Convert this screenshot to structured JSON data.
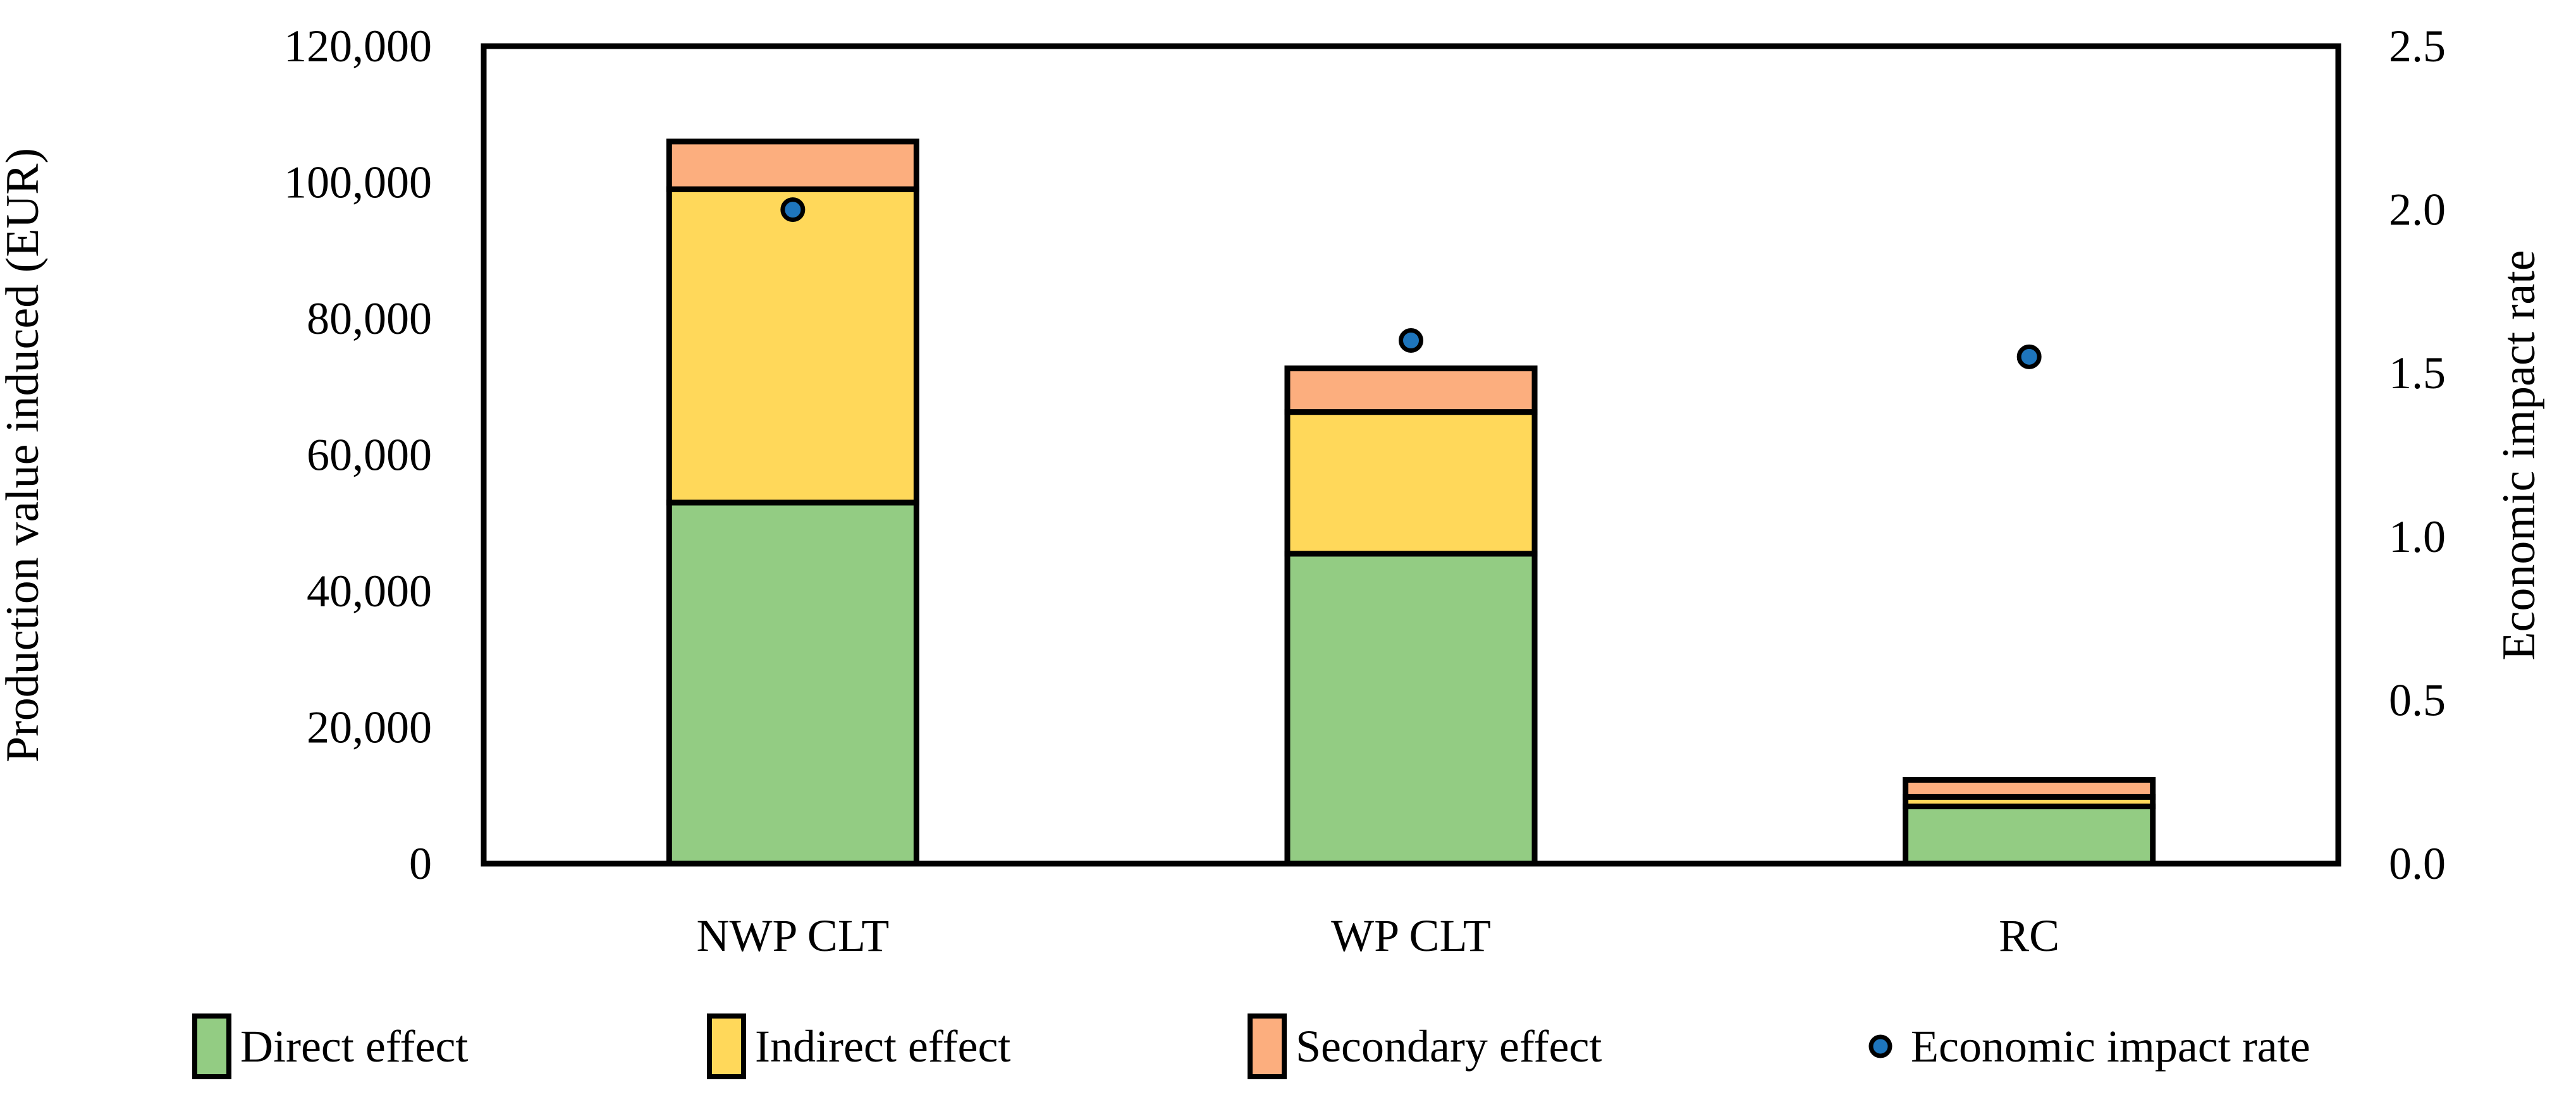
{
  "chart_data": {
    "type": "bar",
    "variant": "stacked-column-with-secondary-axis-scatter",
    "title": "",
    "categories": [
      "NWP CLT",
      "WP CLT",
      "RC"
    ],
    "series": [
      {
        "name": "Direct effect",
        "role": "stack",
        "color": "#93cc83",
        "values": [
          53000,
          45500,
          8400
        ]
      },
      {
        "name": "Indirect effect",
        "role": "stack",
        "color": "#ffd85a",
        "values": [
          46000,
          20800,
          1400
        ]
      },
      {
        "name": "Secondary effect",
        "role": "stack",
        "color": "#fcae7e",
        "values": [
          7000,
          6400,
          2500
        ]
      },
      {
        "name": "Economic impact rate",
        "role": "scatter",
        "color": "#1e75bc",
        "marker_outline": "#000000",
        "values": [
          2.0,
          1.6,
          1.55
        ]
      }
    ],
    "stack_totals": [
      106000,
      72700,
      12300
    ],
    "left_axis": {
      "label": "Production value induced (EUR)",
      "min": 0,
      "max": 120000,
      "step": 20000,
      "format": "comma",
      "tick_labels": [
        "0",
        "20,000",
        "40,000",
        "60,000",
        "80,000",
        "100,000",
        "120,000"
      ]
    },
    "right_axis": {
      "label": "Economic impact rate",
      "min": 0,
      "max": 2.5,
      "step": 0.5,
      "format": "decimal1",
      "tick_labels": [
        "0.0",
        "0.5",
        "1.0",
        "1.5",
        "2.0",
        "2.5"
      ]
    },
    "legend_position": "bottom",
    "grid": false,
    "frame_color": "#000000",
    "background": "#ffffff"
  }
}
